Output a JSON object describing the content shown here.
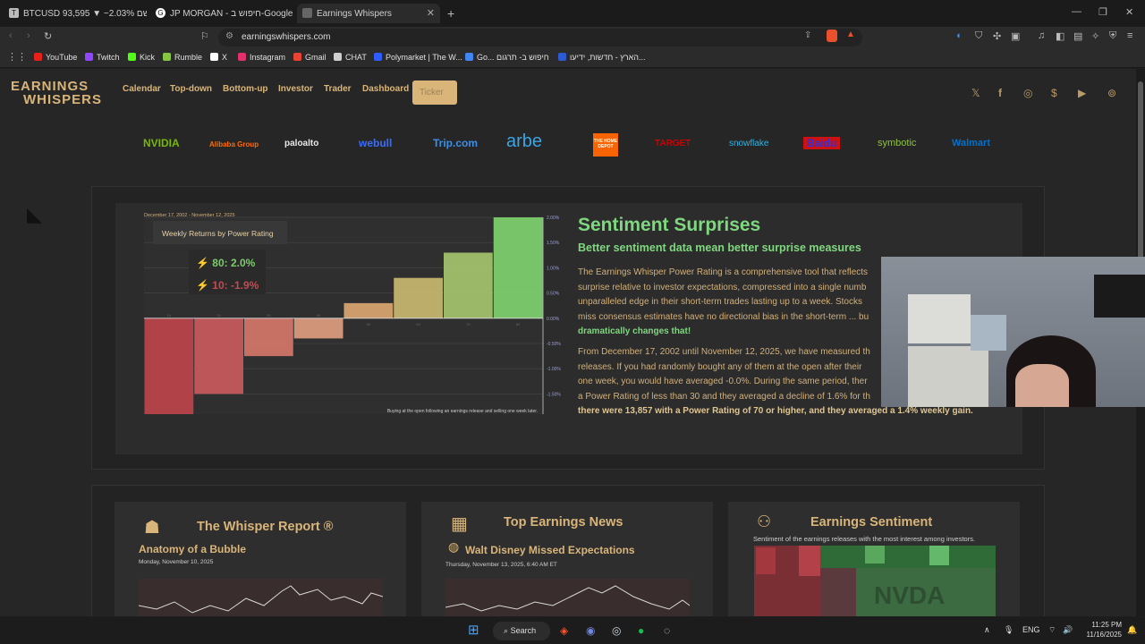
{
  "tabs": [
    {
      "label": "BTCUSD 93,595 ▼ −2.03% ללא שם",
      "icon": "tradingview-icon"
    },
    {
      "label": "JP MORGAN - חיפוש ב-Google",
      "icon": "google-icon"
    },
    {
      "label": "Earnings Whispers",
      "icon": "page-icon",
      "active": true
    }
  ],
  "url": "earningswhispers.com",
  "bookmarks": [
    {
      "label": "YouTube",
      "color": "#e62117"
    },
    {
      "label": "Twitch",
      "color": "#9146ff"
    },
    {
      "label": "Kick",
      "color": "#53fc18"
    },
    {
      "label": "Rumble",
      "color": "#85c742"
    },
    {
      "label": "X",
      "color": "#ffffff"
    },
    {
      "label": "Instagram",
      "color": "#e1306c"
    },
    {
      "label": "Gmail",
      "color": "#ea4335"
    },
    {
      "label": "CHAT",
      "color": "#cfcfcf"
    },
    {
      "label": "Polymarket | The W...",
      "color": "#2e5cff"
    },
    {
      "label": "Go... חיפוש ב- תרגום",
      "color": "#4285f4"
    },
    {
      "label": "הארץ - חדשות, ידיעו...",
      "color": "#2d5bd1"
    }
  ],
  "site": {
    "logo_top": "EARNINGS",
    "logo_bottom": "WHISPERS",
    "nav": [
      "Calendar",
      "Top-down",
      "Bottom-up",
      "Investor",
      "Trader",
      "Dashboard"
    ],
    "ticker_placeholder": "Ticker",
    "brands": [
      "NVIDIA",
      "Alibaba Group",
      "paloalto",
      "webull",
      "Trip.com",
      "arbe",
      "THE HOME DEPOT",
      "TARGET",
      "snowflake",
      "Baidu",
      "symbotic",
      "Walmart"
    ]
  },
  "sentiment": {
    "title": "Sentiment Surprises",
    "subtitle": "Better sentiment data mean better surprise measures",
    "para1_start": "The Earnings Whisper Power Rating is a comprehensive tool that reflects",
    "para1_line2": "surprise relative to investor expectations, compressed into a single numb",
    "para1_line3": "unparalleled edge in their short-term trades lasting up to a week. Stocks",
    "para1_line4": "miss consensus estimates have no directional bias in the short-term ... bu",
    "para1_bold": "dramatically changes that!",
    "para2_l1": "From December 17, 2002 until November 12, 2025, we have measured th",
    "para2_l2": "releases. If you had randomly bought any of them at the open after their",
    "para2_l3": "one week, you would have averaged -0.0%. During the same period, ther",
    "para2_l4": "a Power Rating of less than 30 and they averaged a decline of 1.6% for th",
    "para2_bold": "there were 13,857 with a Power Rating of 70 or higher, and they averaged a 1.4% weekly gain."
  },
  "chart_data": {
    "type": "bar",
    "title": "Weekly Returns by Power Rating",
    "date_range": "December 17, 2002 - November 12, 2025",
    "footnote": "Buying at the open following an earnings release and selling one week later.",
    "categories": [
      "10",
      "20",
      "30",
      "40",
      "50",
      "60",
      "70",
      "80"
    ],
    "values": [
      -1.9,
      -1.5,
      -0.75,
      -0.4,
      0.3,
      0.8,
      1.3,
      2.0
    ],
    "ylim": [
      -1.9,
      2.0
    ],
    "yticks": [
      "2.00%",
      "1.50%",
      "1.00%",
      "0.50%",
      "0.00%",
      "-0.50%",
      "-1.00%",
      "-1.50%"
    ],
    "ytick_values": [
      2.0,
      1.5,
      1.0,
      0.5,
      0.0,
      -0.5,
      -1.0,
      -1.5
    ],
    "tooltip_high": "80: 2.0%",
    "tooltip_low": "10: -1.9%",
    "colors": {
      "positive": "#7ccc6c",
      "negative": "#c04b50",
      "mid": "#d9a46e"
    }
  },
  "cards": [
    {
      "title": "The Whisper Report ®",
      "sub": "Anatomy of a Bubble",
      "date": "Monday, November 10, 2025",
      "icon": "reporter-icon"
    },
    {
      "title": "Top Earnings News",
      "sub": "Walt Disney Missed Expectations",
      "date": "Thursday, November 13, 2025, 6:40 AM ET",
      "icon": "newspaper-icon"
    },
    {
      "title": "Earnings Sentiment",
      "sub": "Sentiment of the earnings releases with the most interest among investors.",
      "heat_label": "NVDA",
      "icon": "group-icon"
    }
  ],
  "taskbar": {
    "search": "Search",
    "lang": "ENG",
    "time": "11:25 PM",
    "date": "11/16/2025"
  }
}
